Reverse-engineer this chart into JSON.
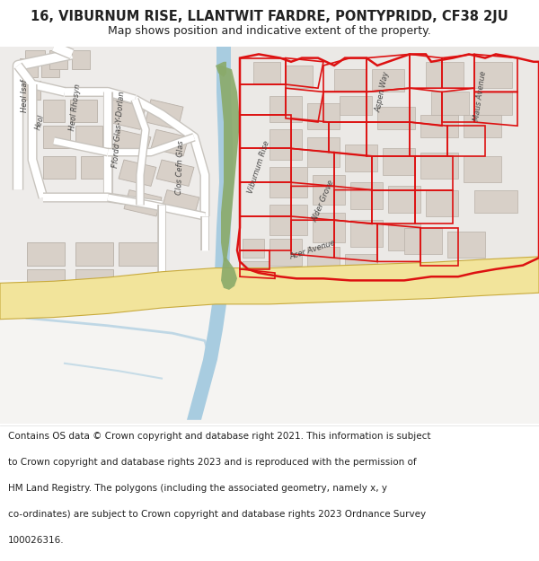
{
  "title_line1": "16, VIBURNUM RISE, LLANTWIT FARDRE, PONTYPRIDD, CF38 2JU",
  "title_line2": "Map shows position and indicative extent of the property.",
  "footer_lines": [
    "Contains OS data © Crown copyright and database right 2021. This information is subject",
    "to Crown copyright and database rights 2023 and is reproduced with the permission of",
    "HM Land Registry. The polygons (including the associated geometry, namely x, y",
    "co-ordinates) are subject to Crown copyright and database rights 2023 Ordnance Survey",
    "100026316."
  ],
  "bg_color": "#f0eeeb",
  "road_yellow_fill": "#f2e49b",
  "road_yellow_edge": "#c8aa3c",
  "road_white_fill": "#ffffff",
  "road_white_edge": "#c0b8b0",
  "green_fill": "#8aaa6a",
  "water_fill": "#a8cce0",
  "building_fill": "#d8d0c8",
  "building_edge": "#b8b0a8",
  "red_line": "#dd1111",
  "text_dark": "#222222",
  "street_color": "#444444",
  "white": "#ffffff",
  "title_bg": "#ffffff",
  "footer_bg": "#ffffff"
}
